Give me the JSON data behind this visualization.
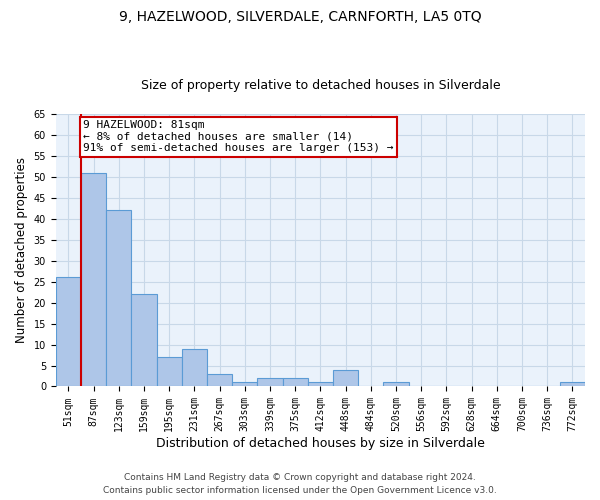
{
  "title": "9, HAZELWOOD, SILVERDALE, CARNFORTH, LA5 0TQ",
  "subtitle": "Size of property relative to detached houses in Silverdale",
  "xlabel": "Distribution of detached houses by size in Silverdale",
  "ylabel": "Number of detached properties",
  "bins": [
    "51sqm",
    "87sqm",
    "123sqm",
    "159sqm",
    "195sqm",
    "231sqm",
    "267sqm",
    "303sqm",
    "339sqm",
    "375sqm",
    "412sqm",
    "448sqm",
    "484sqm",
    "520sqm",
    "556sqm",
    "592sqm",
    "628sqm",
    "664sqm",
    "700sqm",
    "736sqm",
    "772sqm"
  ],
  "values": [
    26,
    51,
    42,
    22,
    7,
    9,
    3,
    1,
    2,
    2,
    1,
    4,
    0,
    1,
    0,
    0,
    0,
    0,
    0,
    0,
    1
  ],
  "bar_color": "#aec6e8",
  "bar_edgecolor": "#5b9bd5",
  "bar_linewidth": 0.8,
  "vline_x": 0.5,
  "vline_color": "#cc0000",
  "annotation_line1": "9 HAZELWOOD: 81sqm",
  "annotation_line2": "← 8% of detached houses are smaller (14)",
  "annotation_line3": "91% of semi-detached houses are larger (153) →",
  "annotation_box_color": "#ffffff",
  "annotation_box_edgecolor": "#cc0000",
  "grid_color": "#c8d8e8",
  "background_color": "#eaf2fb",
  "ylim": [
    0,
    65
  ],
  "yticks": [
    0,
    5,
    10,
    15,
    20,
    25,
    30,
    35,
    40,
    45,
    50,
    55,
    60,
    65
  ],
  "footnote1": "Contains HM Land Registry data © Crown copyright and database right 2024.",
  "footnote2": "Contains public sector information licensed under the Open Government Licence v3.0.",
  "title_fontsize": 10,
  "subtitle_fontsize": 9,
  "annotation_fontsize": 8,
  "tick_fontsize": 7,
  "ylabel_fontsize": 8.5,
  "xlabel_fontsize": 9,
  "footnote_fontsize": 6.5
}
